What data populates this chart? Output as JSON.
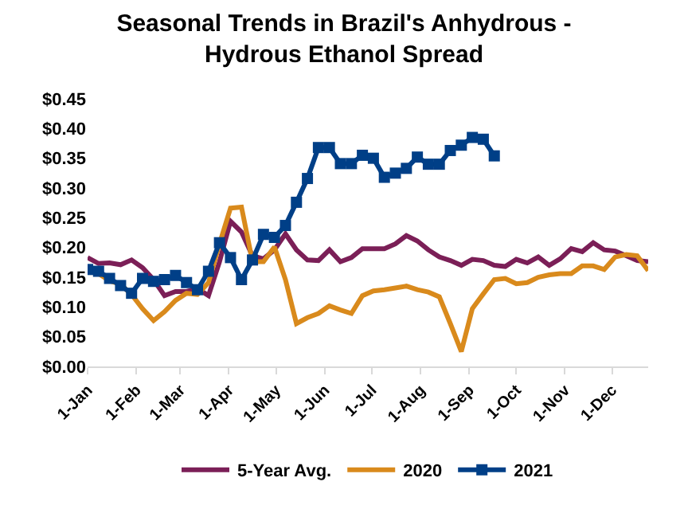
{
  "chart_data": {
    "type": "line",
    "title": "Seasonal Trends in Brazil's Anhydrous -\nHydrous Ethanol Spread",
    "x": [
      "--01-01",
      "--01-08",
      "--01-15",
      "--01-22",
      "--01-29",
      "--02-05",
      "--02-12",
      "--02-19",
      "--02-26",
      "--03-05",
      "--03-12",
      "--03-19",
      "--03-26",
      "--04-02",
      "--04-09",
      "--04-16",
      "--04-23",
      "--04-30",
      "--05-07",
      "--05-14",
      "--05-21",
      "--05-28",
      "--06-04",
      "--06-11",
      "--06-18",
      "--06-25",
      "--07-02",
      "--07-09",
      "--07-16",
      "--07-23",
      "--07-30",
      "--08-06",
      "--08-13",
      "--08-20",
      "--08-27",
      "--09-03",
      "--09-10",
      "--09-17",
      "--09-24",
      "--10-01",
      "--10-08",
      "--10-15",
      "--10-22",
      "--10-29",
      "--11-05",
      "--11-12",
      "--11-19",
      "--11-26",
      "--12-03",
      "--12-10",
      "--12-17",
      "--12-24"
    ],
    "series": [
      {
        "name": "5-Year Avg.",
        "color": "#7b1f57",
        "marker": "none",
        "values": [
          0.183,
          0.173,
          0.174,
          0.171,
          0.179,
          0.166,
          0.146,
          0.119,
          0.126,
          0.126,
          0.131,
          0.119,
          0.176,
          0.244,
          0.226,
          0.186,
          0.181,
          0.196,
          0.223,
          0.196,
          0.179,
          0.178,
          0.196,
          0.176,
          0.183,
          0.198,
          0.198,
          0.198,
          0.206,
          0.22,
          0.211,
          0.196,
          0.184,
          0.178,
          0.17,
          0.18,
          0.178,
          0.17,
          0.168,
          0.18,
          0.174,
          0.184,
          0.17,
          0.181,
          0.198,
          0.193,
          0.208,
          0.196,
          0.194,
          0.186,
          0.178,
          0.176
        ]
      },
      {
        "name": "2020",
        "color": "#d98a1c",
        "marker": "none",
        "values": [
          0.163,
          0.156,
          0.144,
          0.138,
          0.121,
          0.097,
          0.077,
          0.092,
          0.111,
          0.123,
          0.121,
          0.141,
          0.206,
          0.266,
          0.268,
          0.176,
          0.176,
          0.201,
          0.146,
          0.072,
          0.082,
          0.089,
          0.102,
          0.095,
          0.089,
          0.119,
          0.127,
          0.129,
          0.132,
          0.135,
          0.129,
          0.125,
          0.117,
          0.072,
          0.025,
          0.097,
          0.122,
          0.146,
          0.148,
          0.139,
          0.141,
          0.15,
          0.154,
          0.156,
          0.156,
          0.169,
          0.169,
          0.163,
          0.184,
          0.188,
          0.186,
          0.161
        ]
      },
      {
        "name": "2021",
        "color": "#003f87",
        "marker": "square",
        "values": [
          0.163,
          0.16,
          0.148,
          0.136,
          0.123,
          0.148,
          0.143,
          0.146,
          0.153,
          0.141,
          0.129,
          0.16,
          0.208,
          0.183,
          0.146,
          0.179,
          0.222,
          0.217,
          0.237,
          0.276,
          0.316,
          0.368,
          0.368,
          0.341,
          0.341,
          0.355,
          0.35,
          0.318,
          0.325,
          0.333,
          0.352,
          0.34,
          0.34,
          0.363,
          0.372,
          0.385,
          0.382,
          0.354,
          null,
          null,
          null,
          null,
          null,
          null,
          null,
          null,
          null,
          null,
          null,
          null,
          null,
          null
        ]
      }
    ],
    "xlim": [
      "--01-01",
      "--12-24"
    ],
    "xticks": [
      {
        "value": "--01-01",
        "label": "1-Jan"
      },
      {
        "value": "--02-01",
        "label": "1-Feb"
      },
      {
        "value": "--03-01",
        "label": "1-Mar"
      },
      {
        "value": "--04-01",
        "label": "1-Apr"
      },
      {
        "value": "--05-01",
        "label": "1-May"
      },
      {
        "value": "--06-01",
        "label": "1-Jun"
      },
      {
        "value": "--07-01",
        "label": "1-Jul"
      },
      {
        "value": "--08-01",
        "label": "1-Aug"
      },
      {
        "value": "--09-01",
        "label": "1-Sep"
      },
      {
        "value": "--10-01",
        "label": "1-Oct"
      },
      {
        "value": "--11-01",
        "label": "1-Nov"
      },
      {
        "value": "--12-01",
        "label": "1-Dec"
      }
    ],
    "ylim": [
      0,
      0.45
    ],
    "yticks": [
      {
        "value": 0,
        "label": "$0.00"
      },
      {
        "value": 0.05,
        "label": "$0.05"
      },
      {
        "value": 0.1,
        "label": "$0.10"
      },
      {
        "value": 0.15,
        "label": "$0.15"
      },
      {
        "value": 0.2,
        "label": "$0.20"
      },
      {
        "value": 0.25,
        "label": "$0.25"
      },
      {
        "value": 0.3,
        "label": "$0.30"
      },
      {
        "value": 0.35,
        "label": "$0.35"
      },
      {
        "value": 0.4,
        "label": "$0.40"
      },
      {
        "value": 0.45,
        "label": "$0.45"
      }
    ],
    "legend": "bottom",
    "line_style": "solid"
  }
}
